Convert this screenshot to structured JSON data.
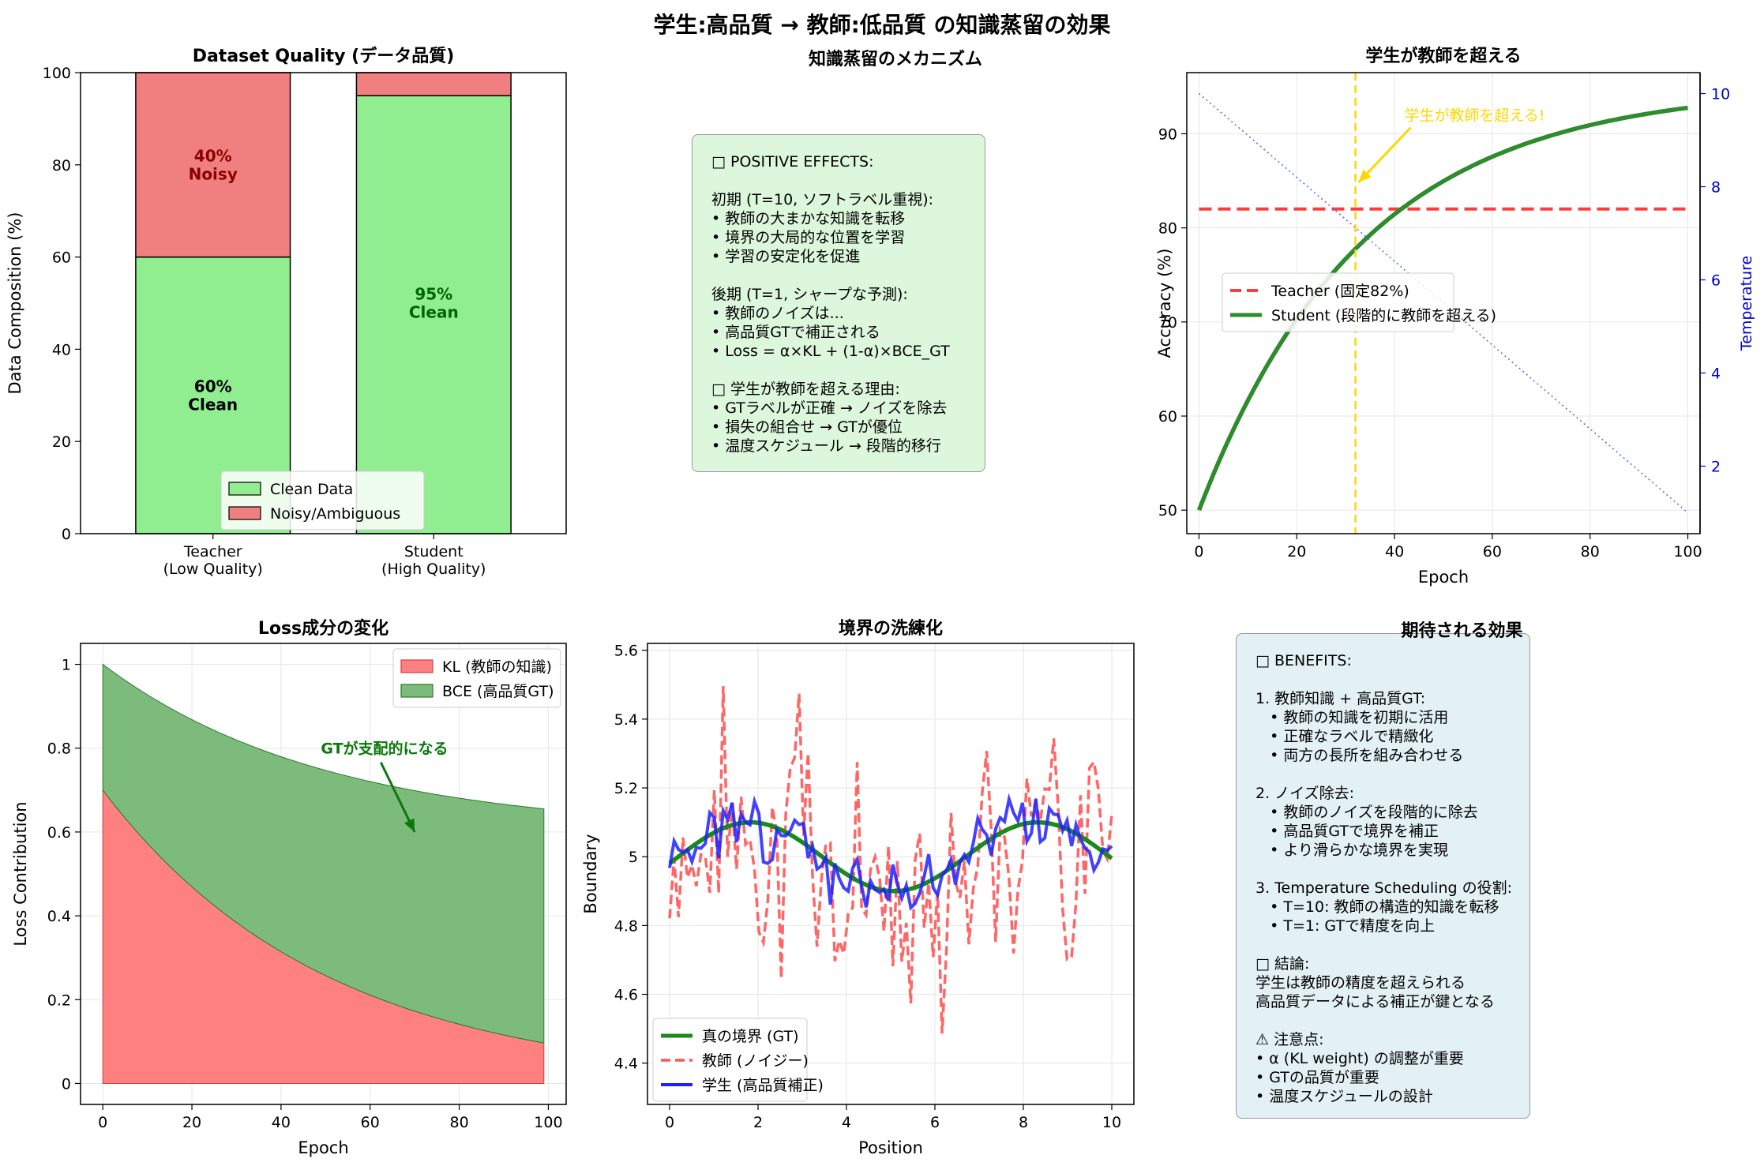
{
  "figure_title": "学生:高品質 → 教師:低品質 の知識蒸留の効果",
  "colors": {
    "clean": "#90ee90",
    "noisy": "#f08080",
    "teacher_line": "#ff3b3b",
    "student_line": "#2e8b2e",
    "temperature": "#5c5cff",
    "annotation_gold": "#ffd700",
    "kl_fill": "#ff8080",
    "bce_fill": "#7dbb7d",
    "gt_line": "#1a8a1a",
    "noisy_line": "#ff5555",
    "student_boundary": "#2020ff",
    "box1_bg": "#dcf7dc",
    "box2_bg": "#e3f1f5"
  },
  "panels": {
    "text1": {
      "title": "知識蒸留のメカニズム",
      "lines": [
        "□ POSITIVE EFFECTS:",
        "",
        "初期 (T=10, ソフトラベル重視):",
        "• 教師の大まかな知識を転移",
        "• 境界の大局的な位置を学習",
        "• 学習の安定化を促進",
        "",
        "後期 (T=1, シャープな予測):",
        "• 教師のノイズは...",
        "• 高品質GTで補正される",
        "• Loss = α×KL + (1-α)×BCE_GT",
        "",
        "□ 学生が教師を超える理由:",
        "• GTラベルが正確 → ノイズを除去",
        "• 損失の組合せ → GTが優位",
        "• 温度スケジュール → 段階的移行"
      ]
    },
    "text2": {
      "title": "期待される効果",
      "lines": [
        "□ BENEFITS:",
        "",
        "1. 教師知識 + 高品質GT:",
        "   • 教師の知識を初期に活用",
        "   • 正確なラベルで精緻化",
        "   • 両方の長所を組み合わせる",
        "",
        "2. ノイズ除去:",
        "   • 教師のノイズを段階的に除去",
        "   • 高品質GTで境界を補正",
        "   • より滑らかな境界を実現",
        "",
        "3. Temperature Scheduling の役割:",
        "   • T=10: 教師の構造的知識を転移",
        "   • T=1: GTで精度を向上",
        "",
        "□ 結論:",
        "学生は教師の精度を超えられる",
        "高品質データによる補正が鍵となる",
        "",
        "⚠ 注意点:",
        "• α (KL weight) の調整が重要",
        "• GTの品質が重要",
        "• 温度スケジュールの設計"
      ]
    }
  },
  "chart_data": [
    {
      "id": "quality",
      "type": "bar",
      "title": "Dataset Quality (データ品質)",
      "xlabel": "",
      "ylabel": "Data Composition (%)",
      "categories": [
        "Teacher\n(Low Quality)",
        "Student\n(High Quality)"
      ],
      "series": [
        {
          "name": "Clean Data",
          "values": [
            60,
            95
          ]
        },
        {
          "name": "Noisy/Ambiguous",
          "values": [
            40,
            5
          ]
        }
      ],
      "stacked": true,
      "bar_labels": [
        {
          "text": "60%\nClean",
          "category": 0,
          "y": 30,
          "color": "#000000"
        },
        {
          "text": "40%\nNoisy",
          "category": 0,
          "y": 80,
          "color": "#8b0000"
        },
        {
          "text": "95%\nClean",
          "category": 1,
          "y": 50,
          "color": "#006400"
        }
      ],
      "ylim": [
        0,
        100
      ],
      "yticks": [
        0,
        20,
        40,
        60,
        80,
        100
      ],
      "grid": false,
      "legend": "lower-center"
    },
    {
      "id": "accuracy",
      "type": "line",
      "title": "学生が教師を超える",
      "xlabel": "Epoch",
      "ylabel": "Accuracy (%)",
      "y2label": "Temperature",
      "xlim": [
        -2.5,
        102.5
      ],
      "ylim": [
        47.5,
        96.5
      ],
      "y2lim": [
        0.55,
        10.45
      ],
      "xticks": [
        0,
        20,
        40,
        60,
        80,
        100
      ],
      "yticks": [
        50,
        60,
        70,
        80,
        90
      ],
      "y2ticks": [
        2,
        4,
        6,
        8,
        10
      ],
      "series": [
        {
          "name": "Teacher (固定82%)",
          "kind": "constant",
          "value": 82,
          "style": "dashed"
        },
        {
          "name": "Student (段階的に教師を超える)",
          "kind": "saturating",
          "start": 50,
          "end": 95,
          "rate": 0.03,
          "style": "solid"
        },
        {
          "name": "",
          "kind": "linear",
          "axis": "y2",
          "from": [
            0,
            10
          ],
          "to": [
            100,
            1
          ],
          "style": "dotted"
        }
      ],
      "vline": {
        "x": 32
      },
      "annotation": {
        "text": "学生が教師を超える!",
        "xy": [
          32,
          85
        ],
        "xytext": [
          42,
          92
        ]
      },
      "grid": true,
      "legend": "center-left"
    },
    {
      "id": "loss",
      "type": "area",
      "title": "Loss成分の変化",
      "xlabel": "Epoch",
      "ylabel": "Loss Contribution",
      "xlim": [
        -5,
        104
      ],
      "ylim": [
        -0.05,
        1.05
      ],
      "xticks": [
        0,
        20,
        40,
        60,
        80,
        100
      ],
      "yticks": [
        0.0,
        0.2,
        0.4,
        0.6,
        0.8,
        1.0
      ],
      "series": [
        {
          "name": "KL (教師の知識)",
          "kind": "decay",
          "start": 0.7,
          "end": 0.0,
          "rate": 0.02
        },
        {
          "name": "BCE (高品質GT)",
          "kind": "decay",
          "start": 0.3,
          "end": 0.6,
          "rate": 0.02
        }
      ],
      "x_range": [
        0,
        99
      ],
      "annotation": {
        "text": "GTが支配的になる",
        "xy": [
          70,
          0.6
        ],
        "xytext": [
          50,
          0.8
        ]
      },
      "grid": true,
      "legend": "top-right"
    },
    {
      "id": "boundary",
      "type": "line",
      "title": "境界の洗練化",
      "xlabel": "Position",
      "ylabel": "Boundary",
      "xlim": [
        -0.5,
        10.5
      ],
      "ylim": [
        4.28,
        5.62
      ],
      "xticks": [
        0,
        2,
        4,
        6,
        8,
        10
      ],
      "yticks": [
        4.4,
        4.6,
        4.8,
        5.0,
        5.2,
        5.4,
        5.6
      ],
      "series": [
        {
          "name": "真の境界 (GT)",
          "kind": "sine",
          "center": 5.0,
          "amplitude": 0.1,
          "period": 6.5,
          "style": "solid"
        },
        {
          "name": "教師 (ノイジー)",
          "kind": "noisy",
          "noise": 0.25,
          "seed": 7,
          "style": "dashed"
        },
        {
          "name": "学生 (高品質補正)",
          "kind": "noisy",
          "noise": 0.06,
          "seed": 3,
          "style": "solid"
        }
      ],
      "points": 100,
      "grid": true,
      "legend": "bottom-left"
    }
  ]
}
